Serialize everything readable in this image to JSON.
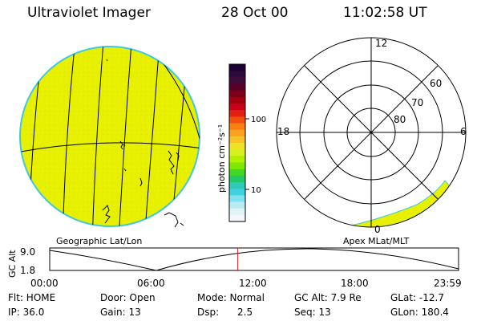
{
  "header": {
    "instrument": "Ultraviolet Imager",
    "date": "28 Oct 00",
    "time": "11:02:58 UT"
  },
  "geo_panel": {
    "caption": "Geographic Lat/Lon"
  },
  "apex_panel": {
    "caption": "Apex MLat/MLT",
    "mlt_labels": {
      "top": "12",
      "left": "18",
      "right": "6",
      "bottom": "0"
    },
    "lat_labels": [
      "60",
      "70",
      "80"
    ]
  },
  "colorbar": {
    "unit_label": "photon cm⁻²s⁻¹",
    "tick_labels": [
      "100",
      "10"
    ],
    "colors": [
      "#1a0033",
      "#2b0a3d",
      "#400a3a",
      "#5a0028",
      "#7d0018",
      "#a00010",
      "#c80018",
      "#e02010",
      "#f05010",
      "#f88010",
      "#f8a020",
      "#f8c028",
      "#f0e028",
      "#d8f020",
      "#b0f000",
      "#80e800",
      "#40d820",
      "#20c868",
      "#30c8b8",
      "#40d0e0",
      "#80e0f0",
      "#b8ecf4",
      "#e0f4f8",
      "#f4f8fa"
    ]
  },
  "gc_alt_plot": {
    "ylabel": "GC Alt",
    "y_ticks": [
      "9.0",
      "1.8"
    ],
    "x_ticks": [
      "00:00",
      "06:00",
      "12:00",
      "18:00",
      "23:59"
    ],
    "current_time_fraction": 0.46,
    "marker_color": "#e02020"
  },
  "footer": {
    "row1": [
      "Flt: HOME",
      "Door: Open",
      "Mode: Normal",
      "GC Alt: 7.9 Re",
      "GLat: -12.7"
    ],
    "row2": [
      "IP: 36.0",
      "Gain: 13",
      "Dsp:      2.5",
      "Seq: 13",
      "GLon: 180.4"
    ]
  },
  "colors": {
    "image_fill": "#e6f000",
    "image_edge": "#40c8e0",
    "grid_line": "#000000"
  }
}
